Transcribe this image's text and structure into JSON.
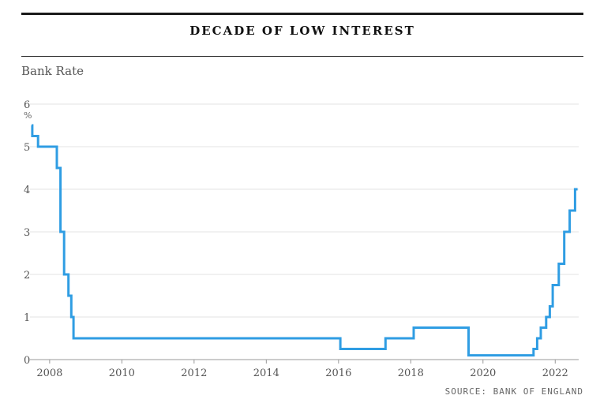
{
  "header": {
    "title": "DECADE OF LOW INTEREST"
  },
  "chart_data": {
    "type": "line",
    "title": "DECADE OF LOW INTEREST",
    "subtitle": "Bank Rate",
    "ylabel": "%",
    "xlabel": "",
    "x_ticks": [
      "2008",
      "2010",
      "2012",
      "2014",
      "2016",
      "2018",
      "2020",
      "2022"
    ],
    "y_ticks": [
      "0",
      "1",
      "2",
      "3",
      "4",
      "5",
      "6"
    ],
    "xlim": [
      2007.5,
      2022.65
    ],
    "ylim": [
      0,
      6
    ],
    "grid": true,
    "step": true,
    "color": "#2f9de3",
    "series": [
      {
        "x": [
          2007.5,
          2007.52,
          2007.68,
          2007.93,
          2008.2,
          2008.3,
          2008.4,
          2008.52,
          2008.6,
          2008.66,
          2009.6,
          2016.05,
          2017.3,
          2018.08,
          2019.6,
          2020.22,
          2020.5,
          2021.4,
          2021.5,
          2021.6,
          2021.75,
          2021.85,
          2021.93,
          2022.1,
          2022.25,
          2022.4,
          2022.55,
          2022.62
        ],
        "values": [
          5.5,
          5.25,
          5.0,
          5.0,
          4.5,
          3.0,
          2.0,
          1.5,
          1.0,
          0.5,
          0.5,
          0.25,
          0.5,
          0.75,
          0.1,
          0.1,
          0.1,
          0.25,
          0.5,
          0.75,
          1.0,
          1.25,
          1.75,
          2.25,
          3.0,
          3.5,
          4.0,
          4.0
        ]
      }
    ]
  },
  "footer": {
    "source": "SOURCE: BANK OF ENGLAND"
  }
}
